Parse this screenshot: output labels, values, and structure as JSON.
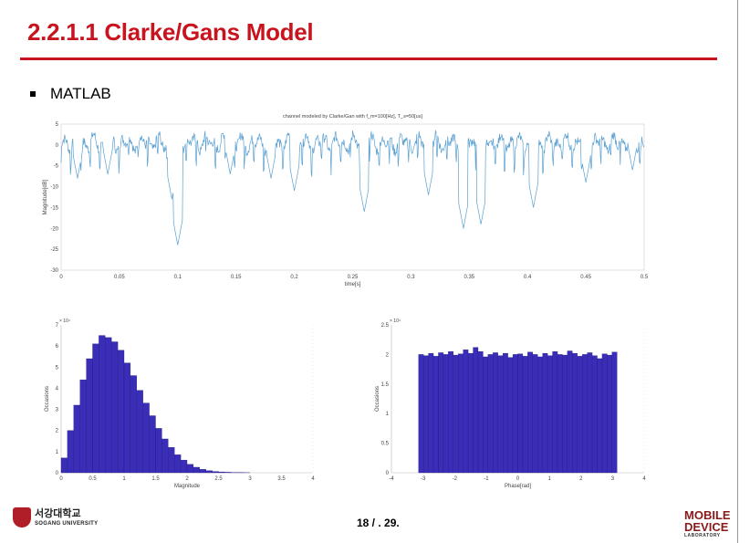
{
  "slide": {
    "title": "2.2.1.1 Clarke/Gans Model",
    "bullet": "MATLAB",
    "page": "18 / . 29.",
    "accent_color": "#c8141e"
  },
  "logos": {
    "left_kr": "서강대학교",
    "left_en": "SOGANG UNIVERSITY",
    "right_line1": "MOBILE",
    "right_line2": "DEVICE",
    "right_line3": "LABORATORY"
  },
  "chart_data": [
    {
      "type": "line",
      "title": "channel modeled by Clarke/Gan with f_m=100[Hz], T_s=50[us]",
      "xlabel": "time[s]",
      "ylabel": "Magnitude[dB]",
      "xlim": [
        0,
        0.5
      ],
      "ylim": [
        -30,
        5
      ],
      "xticks": [
        "0",
        "0.05",
        "0.1",
        "0.15",
        "0.2",
        "0.25",
        "0.3",
        "0.35",
        "0.4",
        "0.45",
        "0.5"
      ],
      "yticks": [
        "5",
        "0",
        "-5",
        "-10",
        "-15",
        "-20",
        "-25",
        "-30"
      ],
      "line_color": "#5aa0d2",
      "deep_fades": [
        {
          "x": 0.014,
          "y": -8
        },
        {
          "x": 0.04,
          "y": -7
        },
        {
          "x": 0.095,
          "y": -13
        },
        {
          "x": 0.1,
          "y": -24
        },
        {
          "x": 0.145,
          "y": -7
        },
        {
          "x": 0.18,
          "y": -8
        },
        {
          "x": 0.2,
          "y": -11
        },
        {
          "x": 0.26,
          "y": -16
        },
        {
          "x": 0.315,
          "y": -12
        },
        {
          "x": 0.345,
          "y": -20
        },
        {
          "x": 0.36,
          "y": -19
        },
        {
          "x": 0.405,
          "y": -15
        },
        {
          "x": 0.45,
          "y": -9
        },
        {
          "x": 0.49,
          "y": -6
        }
      ]
    },
    {
      "type": "bar",
      "title": "",
      "xlabel": "Magnitude",
      "ylabel": "Occasions",
      "exponent": "× 10⁴",
      "xlim": [
        0,
        4
      ],
      "ylim": [
        0,
        7
      ],
      "xticks": [
        "0",
        "0.5",
        "1",
        "1.5",
        "2",
        "2.5",
        "3",
        "3.5",
        "4"
      ],
      "yticks": [
        "7",
        "6",
        "5",
        "4",
        "3",
        "2",
        "1",
        "0"
      ],
      "bin_width": 0.1,
      "bar_color": "#3a2db8",
      "x": [
        0.05,
        0.15,
        0.25,
        0.35,
        0.45,
        0.55,
        0.65,
        0.75,
        0.85,
        0.95,
        1.05,
        1.15,
        1.25,
        1.35,
        1.45,
        1.55,
        1.65,
        1.75,
        1.85,
        1.95,
        2.05,
        2.15,
        2.25,
        2.35,
        2.45,
        2.55,
        2.65,
        2.75,
        2.85,
        2.95
      ],
      "values": [
        0.7,
        2.0,
        3.2,
        4.4,
        5.4,
        6.1,
        6.5,
        6.4,
        6.2,
        5.8,
        5.2,
        4.6,
        3.9,
        3.3,
        2.7,
        2.1,
        1.6,
        1.2,
        0.85,
        0.6,
        0.4,
        0.26,
        0.16,
        0.1,
        0.06,
        0.04,
        0.025,
        0.015,
        0.01,
        0.005
      ]
    },
    {
      "type": "bar",
      "title": "",
      "xlabel": "Phase[rad]",
      "ylabel": "Occasions",
      "exponent": "× 10⁴",
      "xlim": [
        -4,
        4
      ],
      "ylim": [
        0,
        2.5
      ],
      "xticks": [
        "-4",
        "-3",
        "-2",
        "-1",
        "0",
        "1",
        "2",
        "3",
        "4"
      ],
      "yticks": [
        "2.5",
        "2",
        "1.5",
        "1",
        "0.5",
        "0"
      ],
      "bin_width": 0.157,
      "bar_color": "#3a2db8",
      "values": [
        2.0,
        1.98,
        2.02,
        1.97,
        2.03,
        2.0,
        2.05,
        1.99,
        2.01,
        2.08,
        2.02,
        2.12,
        2.05,
        1.96,
        2.0,
        2.03,
        1.98,
        2.02,
        1.95,
        2.0,
        2.01,
        1.97,
        2.04,
        2.0,
        1.96,
        2.02,
        1.98,
        2.05,
        2.0,
        1.99,
        2.06,
        2.02,
        1.97,
        2.0,
        2.03,
        1.98,
        1.93,
        2.01,
        1.99,
        2.04
      ]
    }
  ]
}
